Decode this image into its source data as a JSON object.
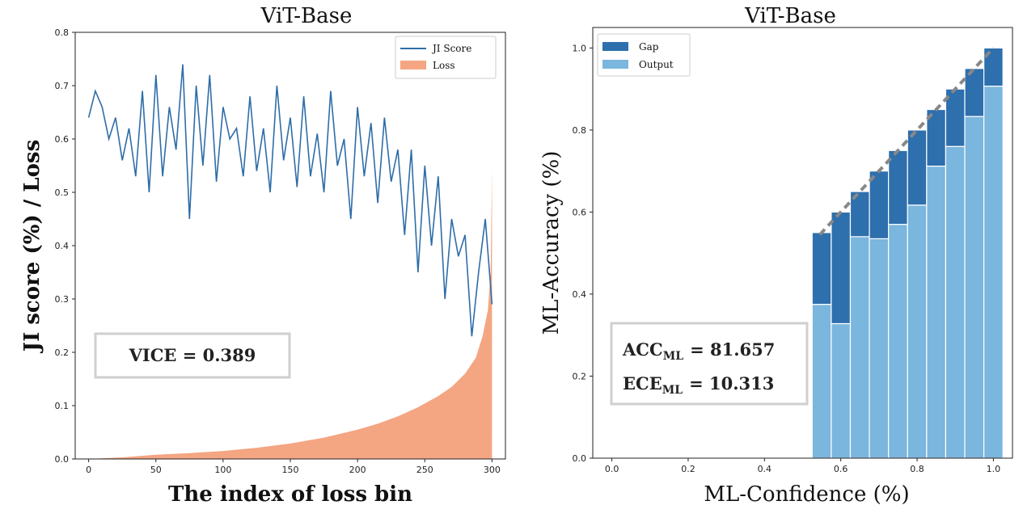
{
  "chart_data": [
    {
      "type": "line",
      "title": "ViT-Base",
      "xlabel": "The index of loss bin",
      "ylabel": "JI score (%) / Loss",
      "xlim": [
        -10,
        310
      ],
      "ylim": [
        0.0,
        0.8
      ],
      "xticks": [
        0,
        50,
        100,
        150,
        200,
        250,
        300
      ],
      "yticks": [
        0.0,
        0.1,
        0.2,
        0.3,
        0.4,
        0.5,
        0.6,
        0.7,
        0.8
      ],
      "xtick_labels": [
        "0",
        "50",
        "100",
        "150",
        "200",
        "250",
        "300"
      ],
      "ytick_labels": [
        "0.0",
        "0.1",
        "0.2",
        "0.3",
        "0.4",
        "0.5",
        "0.6",
        "0.7",
        "0.8"
      ],
      "legend": [
        "JI Score",
        "Loss"
      ],
      "legend_position": "top-right",
      "annotation": "VICE = 0.389",
      "series": [
        {
          "name": "JI Score",
          "color": "#2e6da8",
          "x": [
            0,
            5,
            10,
            15,
            20,
            25,
            30,
            35,
            40,
            45,
            50,
            55,
            60,
            65,
            70,
            75,
            80,
            85,
            90,
            95,
            100,
            105,
            110,
            115,
            120,
            125,
            130,
            135,
            140,
            145,
            150,
            155,
            160,
            165,
            170,
            175,
            180,
            185,
            190,
            195,
            200,
            205,
            210,
            215,
            220,
            225,
            230,
            235,
            240,
            245,
            250,
            255,
            260,
            265,
            270,
            275,
            280,
            285,
            290,
            295,
            300
          ],
          "values": [
            0.64,
            0.69,
            0.66,
            0.6,
            0.64,
            0.56,
            0.62,
            0.53,
            0.69,
            0.5,
            0.72,
            0.53,
            0.66,
            0.58,
            0.74,
            0.45,
            0.7,
            0.55,
            0.72,
            0.52,
            0.66,
            0.6,
            0.62,
            0.53,
            0.68,
            0.54,
            0.62,
            0.5,
            0.7,
            0.56,
            0.64,
            0.51,
            0.68,
            0.53,
            0.61,
            0.5,
            0.69,
            0.55,
            0.6,
            0.45,
            0.66,
            0.53,
            0.63,
            0.48,
            0.64,
            0.52,
            0.58,
            0.42,
            0.58,
            0.35,
            0.55,
            0.4,
            0.53,
            0.3,
            0.45,
            0.38,
            0.42,
            0.23,
            0.35,
            0.45,
            0.29
          ]
        },
        {
          "name": "Loss",
          "color": "#f4a582",
          "x": [
            0,
            25,
            50,
            75,
            100,
            125,
            150,
            175,
            200,
            215,
            230,
            245,
            260,
            270,
            280,
            288,
            293,
            297,
            299,
            300
          ],
          "values": [
            0.0,
            0.003,
            0.008,
            0.011,
            0.015,
            0.021,
            0.029,
            0.04,
            0.055,
            0.066,
            0.08,
            0.097,
            0.118,
            0.135,
            0.16,
            0.19,
            0.23,
            0.28,
            0.35,
            0.545
          ]
        }
      ]
    },
    {
      "type": "bar",
      "title": "ViT-Base",
      "xlabel": "ML-Confidence (%)",
      "ylabel": "ML-Accuracy (%)",
      "xlim": [
        -0.05,
        1.05
      ],
      "ylim": [
        0.0,
        1.05
      ],
      "xticks": [
        0.0,
        0.2,
        0.4,
        0.6,
        0.8,
        1.0
      ],
      "yticks": [
        0.0,
        0.2,
        0.4,
        0.6,
        0.8,
        1.0
      ],
      "xtick_labels": [
        "0.0",
        "0.2",
        "0.4",
        "0.6",
        "0.8",
        "1.0"
      ],
      "ytick_labels": [
        "0.0",
        "0.2",
        "0.4",
        "0.6",
        "0.8",
        "1.0"
      ],
      "legend": [
        "Gap",
        "Output"
      ],
      "legend_position": "top-left",
      "annotation": {
        "acc_label": "ACC",
        "acc_sub": "ML",
        "acc_value": "= 81.657",
        "ece_label": "ECE",
        "ece_sub": "ML",
        "ece_value": "= 10.313"
      },
      "bin_width": 0.05,
      "bin_centers": [
        0.55,
        0.6,
        0.65,
        0.7,
        0.75,
        0.8,
        0.85,
        0.9,
        0.95,
        1.0
      ],
      "series": [
        {
          "name": "Output",
          "color": "#7ab6dd",
          "values": [
            0.375,
            0.328,
            0.54,
            0.535,
            0.57,
            0.617,
            0.712,
            0.76,
            0.833,
            0.907
          ]
        },
        {
          "name": "Gap",
          "color": "#2e6fad",
          "values": [
            0.175,
            0.272,
            0.11,
            0.165,
            0.18,
            0.183,
            0.138,
            0.14,
            0.117,
            0.093
          ]
        }
      ],
      "diagonal_color": "#888888"
    }
  ]
}
